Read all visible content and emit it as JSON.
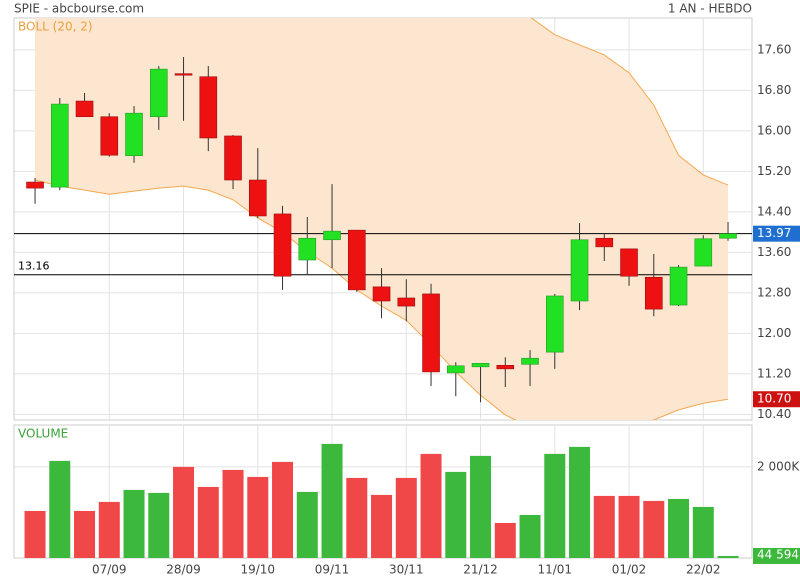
{
  "chart_data": {
    "type": "candlestick",
    "title": "SPIE - abcbourse.com",
    "period": "1 AN - HEBDO",
    "categories": [
      null,
      null,
      null,
      "07/09",
      null,
      null,
      "28/09",
      null,
      null,
      "19/10",
      null,
      null,
      "09/11",
      null,
      null,
      "30/11",
      null,
      null,
      "21/12",
      null,
      null,
      "11/01",
      null,
      null,
      "01/02",
      null,
      null,
      "22/02",
      null
    ],
    "open": [
      14.99,
      14.89,
      16.59,
      16.28,
      15.51,
      16.28,
      17.13,
      17.07,
      15.9,
      15.03,
      14.36,
      13.45,
      13.85,
      14.04,
      12.92,
      12.7,
      12.78,
      11.22,
      11.34,
      11.37,
      11.39,
      11.63,
      12.64,
      13.88,
      13.67,
      13.11,
      12.56,
      13.33,
      13.88
    ],
    "high": [
      15.07,
      16.65,
      16.75,
      16.35,
      16.49,
      17.28,
      17.46,
      17.28,
      15.92,
      15.66,
      14.52,
      14.3,
      14.95,
      14.04,
      13.29,
      13.07,
      12.98,
      11.43,
      11.41,
      11.53,
      11.67,
      12.78,
      14.18,
      13.96,
      13.67,
      13.57,
      13.35,
      13.94,
      14.2
    ],
    "low": [
      14.56,
      14.83,
      16.28,
      15.49,
      15.37,
      16.02,
      16.2,
      15.6,
      14.85,
      14.28,
      12.86,
      13.17,
      13.29,
      12.82,
      12.3,
      12.24,
      10.96,
      10.76,
      10.64,
      10.94,
      10.96,
      11.3,
      12.46,
      13.43,
      12.94,
      12.34,
      12.54,
      13.33,
      13.83
    ],
    "close": [
      14.87,
      16.53,
      16.28,
      15.52,
      16.35,
      17.22,
      17.11,
      15.86,
      15.03,
      14.32,
      13.13,
      13.88,
      14.02,
      12.86,
      12.64,
      12.54,
      11.24,
      11.36,
      11.41,
      11.3,
      11.51,
      12.74,
      13.85,
      13.71,
      13.13,
      12.48,
      13.31,
      13.87,
      13.97
    ],
    "up_color": "#22e022",
    "down_color": "#ee1111",
    "ylim": [
      10.29,
      18.23
    ],
    "yticks": [
      {
        "value": 10.4,
        "label": "10.40"
      },
      {
        "value": 11.2,
        "label": "11.20"
      },
      {
        "value": 12.0,
        "label": "12.00"
      },
      {
        "value": 12.8,
        "label": "12.80"
      },
      {
        "value": 13.6,
        "label": "13.60"
      },
      {
        "value": 14.4,
        "label": "14.40"
      },
      {
        "value": 15.2,
        "label": "15.20"
      },
      {
        "value": 16.0,
        "label": "16.00"
      },
      {
        "value": 16.8,
        "label": "16.80"
      },
      {
        "value": 17.6,
        "label": "17.60"
      }
    ],
    "grid": true,
    "bollinger": {
      "label": "BOLL (20, 2)",
      "upper": [
        18.6,
        18.7,
        18.8,
        18.8,
        18.9,
        19.0,
        19.1,
        19.2,
        19.2,
        19.2,
        19.1,
        19.0,
        18.9,
        18.8,
        18.7,
        18.6,
        18.5,
        18.45,
        18.4,
        18.35,
        18.25,
        17.9,
        17.7,
        17.5,
        17.15,
        16.51,
        15.52,
        15.13,
        14.93
      ],
      "lower": [
        15.03,
        14.91,
        14.83,
        14.75,
        14.81,
        14.87,
        14.91,
        14.83,
        14.64,
        14.28,
        14.0,
        13.61,
        13.29,
        12.86,
        12.54,
        12.26,
        11.77,
        11.24,
        10.78,
        10.39,
        10.15,
        10.05,
        10.0,
        10.05,
        10.15,
        10.29,
        10.49,
        10.62,
        10.7
      ],
      "lower_value_labels": [
        null,
        null,
        null,
        null,
        null,
        null,
        null,
        null,
        null,
        null,
        null,
        null,
        null,
        null,
        null,
        null,
        null,
        null,
        null,
        null,
        null,
        null,
        null,
        null,
        null,
        null,
        null,
        null,
        "10.70"
      ],
      "line_color": "#f2a850",
      "fill_color": "#fde6cf",
      "label_color": "#e8a040"
    },
    "hlines": [
      {
        "value": 13.97,
        "label_side": "right",
        "box_color": "#1e6fd0"
      },
      {
        "value": 13.16,
        "label_side": "left"
      }
    ],
    "volume": {
      "label": "VOLUME",
      "values": [
        1033000,
        2132000,
        1033000,
        1231000,
        1495000,
        1429000,
        2000000,
        1560000,
        1934000,
        1780000,
        2110000,
        1451000,
        2505000,
        1758000,
        1385000,
        1758000,
        2286000,
        1890000,
        2242000,
        769000,
        945000,
        2286000,
        2440000,
        1363000,
        1363000,
        1253000,
        1297000,
        1121000,
        44594
      ],
      "value_labels": [
        null,
        null,
        null,
        null,
        null,
        null,
        null,
        null,
        null,
        null,
        null,
        null,
        null,
        null,
        null,
        null,
        null,
        null,
        null,
        null,
        null,
        null,
        null,
        null,
        null,
        null,
        null,
        null,
        "44 594"
      ],
      "ylim": [
        0,
        2920000
      ],
      "yticks": [
        {
          "value": 2000000,
          "label": "2 000K"
        }
      ],
      "up_color": "#3cb83c",
      "down_color": "#f04848",
      "label_color": "#3aa03a"
    }
  }
}
